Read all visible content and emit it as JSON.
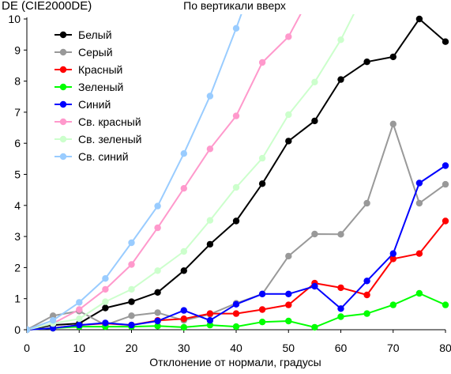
{
  "chart_data": {
    "type": "line",
    "title": "По вертикали вверх",
    "ylabel": "DE (CIE2000DE)",
    "xlabel": "Отклонение от нормали, градусы",
    "xlim": [
      0,
      80
    ],
    "ylim": [
      0,
      10
    ],
    "xticks": [
      0,
      10,
      20,
      30,
      40,
      50,
      60,
      70,
      80
    ],
    "yticks": [
      0,
      1,
      2,
      3,
      4,
      5,
      6,
      7,
      8,
      9,
      10
    ],
    "grid": false,
    "legend": "top-left, inside plot",
    "series": [
      {
        "name": "Белый",
        "color": "#000000",
        "x": [
          0,
          5,
          10,
          15,
          20,
          25,
          30,
          35,
          40,
          45,
          50,
          55,
          60,
          65,
          70,
          75,
          80
        ],
        "y": [
          0,
          0.15,
          0.2,
          0.7,
          0.9,
          1.2,
          1.9,
          2.75,
          3.5,
          4.7,
          6.07,
          6.72,
          8.05,
          8.62,
          8.78,
          10.0,
          9.27
        ]
      },
      {
        "name": "Серый",
        "color": "#999999",
        "x": [
          0,
          5,
          10,
          15,
          20,
          25,
          30,
          35,
          40,
          45,
          50,
          55,
          60,
          65,
          70,
          75,
          80
        ],
        "y": [
          0,
          0.45,
          0.6,
          0.15,
          0.45,
          0.55,
          0.3,
          0.5,
          0.85,
          1.15,
          2.37,
          3.08,
          3.07,
          4.07,
          6.62,
          4.07,
          4.68
        ]
      },
      {
        "name": "Красный",
        "color": "#ff0000",
        "x": [
          0,
          5,
          10,
          15,
          20,
          25,
          30,
          35,
          40,
          45,
          50,
          55,
          60,
          65,
          70,
          75,
          80
        ],
        "y": [
          0,
          0.05,
          0.15,
          0.2,
          0.15,
          0.3,
          0.35,
          0.52,
          0.52,
          0.65,
          0.8,
          1.5,
          1.35,
          1.12,
          2.28,
          2.45,
          3.5
        ]
      },
      {
        "name": "Зеленый",
        "color": "#00ff00",
        "x": [
          0,
          5,
          10,
          15,
          20,
          25,
          30,
          35,
          40,
          45,
          50,
          55,
          60,
          65,
          70,
          75,
          80
        ],
        "y": [
          0,
          0.05,
          0.1,
          0.1,
          0.1,
          0.12,
          0.08,
          0.15,
          0.1,
          0.25,
          0.28,
          0.08,
          0.42,
          0.52,
          0.8,
          1.17,
          0.8
        ]
      },
      {
        "name": "Синий",
        "color": "#0000ff",
        "x": [
          0,
          5,
          10,
          15,
          20,
          25,
          30,
          35,
          40,
          45,
          50,
          55,
          60,
          65,
          70,
          75,
          80
        ],
        "y": [
          0,
          0.05,
          0.15,
          0.22,
          0.15,
          0.28,
          0.62,
          0.3,
          0.82,
          1.15,
          1.15,
          1.4,
          0.68,
          1.57,
          2.45,
          4.72,
          5.28
        ]
      },
      {
        "name": "Св. красный",
        "color": "#ff99cc",
        "x": [
          0,
          5,
          10,
          15,
          20,
          25,
          30,
          35,
          40,
          45,
          50,
          55
        ],
        "y": [
          0,
          0.2,
          0.65,
          1.3,
          2.1,
          3.28,
          4.55,
          5.82,
          6.88,
          8.6,
          9.43,
          11.0
        ]
      },
      {
        "name": "Св. зеленый",
        "color": "#ccffcc",
        "x": [
          0,
          5,
          10,
          15,
          20,
          25,
          30,
          35,
          40,
          45,
          50,
          55,
          60,
          65
        ],
        "y": [
          0,
          0.2,
          0.35,
          0.9,
          1.3,
          1.9,
          2.52,
          3.52,
          4.58,
          5.52,
          6.92,
          7.97,
          9.33,
          11.0
        ]
      },
      {
        "name": "Св. синий",
        "color": "#99ccff",
        "x": [
          0,
          5,
          10,
          15,
          20,
          25,
          30,
          35,
          40,
          45
        ],
        "y": [
          0,
          0.3,
          0.88,
          1.65,
          2.8,
          3.98,
          5.67,
          7.52,
          9.7,
          12.0
        ]
      }
    ]
  }
}
